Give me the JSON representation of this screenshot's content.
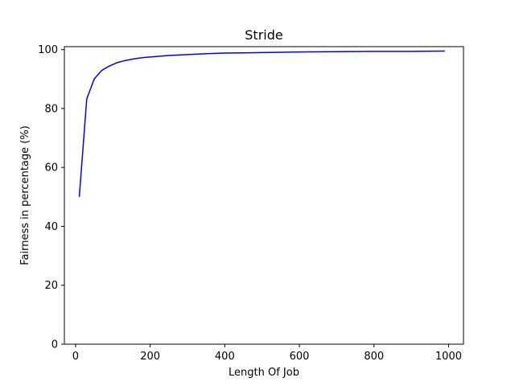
{
  "chart_data": {
    "type": "line",
    "title": "Stride",
    "xlabel": "Length Of Job",
    "ylabel": "Fairness in percentage (%)",
    "xlim": [
      -30,
      1040
    ],
    "ylim": [
      0,
      101
    ],
    "x_ticks": [
      0,
      200,
      400,
      600,
      800,
      1000
    ],
    "y_ticks": [
      0,
      20,
      40,
      60,
      80,
      100
    ],
    "grid": false,
    "line_color": "#0000ff",
    "series": [
      {
        "x": [
          10,
          30,
          50,
          70,
          90,
          110,
          130,
          150,
          170,
          190,
          210,
          250,
          300,
          350,
          400,
          450,
          500,
          600,
          700,
          800,
          900,
          990
        ],
        "y": [
          50.0,
          83.3,
          90.0,
          92.9,
          94.4,
          95.5,
          96.2,
          96.7,
          97.1,
          97.4,
          97.6,
          98.0,
          98.3,
          98.6,
          98.8,
          98.9,
          99.0,
          99.2,
          99.3,
          99.4,
          99.4,
          99.5
        ]
      }
    ]
  }
}
